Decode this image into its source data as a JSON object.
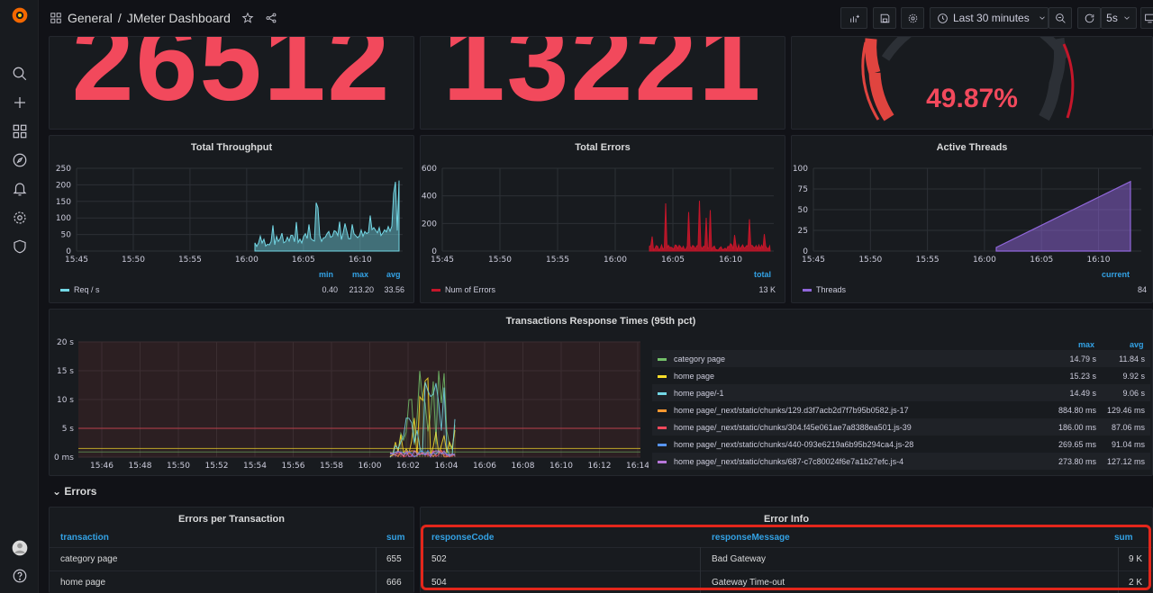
{
  "breadcrumb": {
    "folder": "General",
    "separator": "/",
    "dashboard": "JMeter Dashboard"
  },
  "toolbar": {
    "time_range": "Last 30 minutes",
    "refresh": "5s"
  },
  "stats": {
    "stat1": "26512",
    "stat2": "13221",
    "gauge": "49.87%",
    "gauge_value_pct": 49.87
  },
  "throughput": {
    "title": "Total Throughput",
    "y_ticks": [
      "250",
      "200",
      "150",
      "100",
      "50",
      "0"
    ],
    "x_ticks": [
      "15:45",
      "15:50",
      "15:55",
      "16:00",
      "16:05",
      "16:10"
    ],
    "legend_headers": [
      "min",
      "max",
      "avg"
    ],
    "legend_name": "Req / s",
    "legend_values": [
      "0.40",
      "213.20",
      "33.56"
    ],
    "color": "#73d7e5"
  },
  "errors_panel": {
    "title": "Total Errors",
    "y_ticks": [
      "600",
      "400",
      "200",
      "0"
    ],
    "x_ticks": [
      "15:45",
      "15:50",
      "15:55",
      "16:00",
      "16:05",
      "16:10"
    ],
    "legend_header": "total",
    "legend_name": "Num of Errors",
    "legend_value": "13 K",
    "color": "#c4162a"
  },
  "threads": {
    "title": "Active Threads",
    "y_ticks": [
      "100",
      "75",
      "50",
      "25",
      "0"
    ],
    "x_ticks": [
      "15:45",
      "15:50",
      "15:55",
      "16:00",
      "16:05",
      "16:10"
    ],
    "legend_header": "current",
    "legend_name": "Threads",
    "legend_value": "84",
    "color": "#8f66d9"
  },
  "response_times": {
    "title": "Transactions Response Times (95th pct)",
    "y_ticks": [
      "20 s",
      "15 s",
      "10 s",
      "5 s",
      "0 ms"
    ],
    "x_ticks": [
      "15:46",
      "15:48",
      "15:50",
      "15:52",
      "15:54",
      "15:56",
      "15:58",
      "16:00",
      "16:02",
      "16:04",
      "16:06",
      "16:08",
      "16:10",
      "16:12",
      "16:14"
    ],
    "legend_headers": [
      "max",
      "avg"
    ],
    "series": [
      {
        "name": "category page",
        "max": "14.79 s",
        "avg": "11.84 s",
        "color": "#73bf69"
      },
      {
        "name": "home page",
        "max": "15.23 s",
        "avg": "9.92 s",
        "color": "#fade2a"
      },
      {
        "name": "home page/-1",
        "max": "14.49 s",
        "avg": "9.06 s",
        "color": "#73d7e5"
      },
      {
        "name": "home page/_next/static/chunks/129.d3f7acb2d7f7b95b0582.js-17",
        "max": "884.80 ms",
        "avg": "129.46 ms",
        "color": "#ff9830"
      },
      {
        "name": "home page/_next/static/chunks/304.f45e061ae7a8388ea501.js-39",
        "max": "186.00 ms",
        "avg": "87.06 ms",
        "color": "#f2495c"
      },
      {
        "name": "home page/_next/static/chunks/440-093e6219a6b95b294ca4.js-28",
        "max": "269.65 ms",
        "avg": "91.04 ms",
        "color": "#5794f2"
      },
      {
        "name": "home page/_next/static/chunks/687-c7c80024f6e7a1b27efc.js-4",
        "max": "273.80 ms",
        "avg": "127.12 ms",
        "color": "#b877d9"
      }
    ]
  },
  "errors_section": {
    "label": "Errors"
  },
  "errors_per_transaction": {
    "title": "Errors per Transaction",
    "headers": [
      "transaction",
      "sum"
    ],
    "rows": [
      [
        "category page",
        "655"
      ],
      [
        "home page",
        "666"
      ]
    ]
  },
  "error_info": {
    "title": "Error Info",
    "headers": [
      "responseCode",
      "responseMessage",
      "sum"
    ],
    "rows": [
      [
        "502",
        "Bad Gateway",
        "9 K"
      ],
      [
        "504",
        "Gateway Time-out",
        "2 K"
      ]
    ]
  }
}
